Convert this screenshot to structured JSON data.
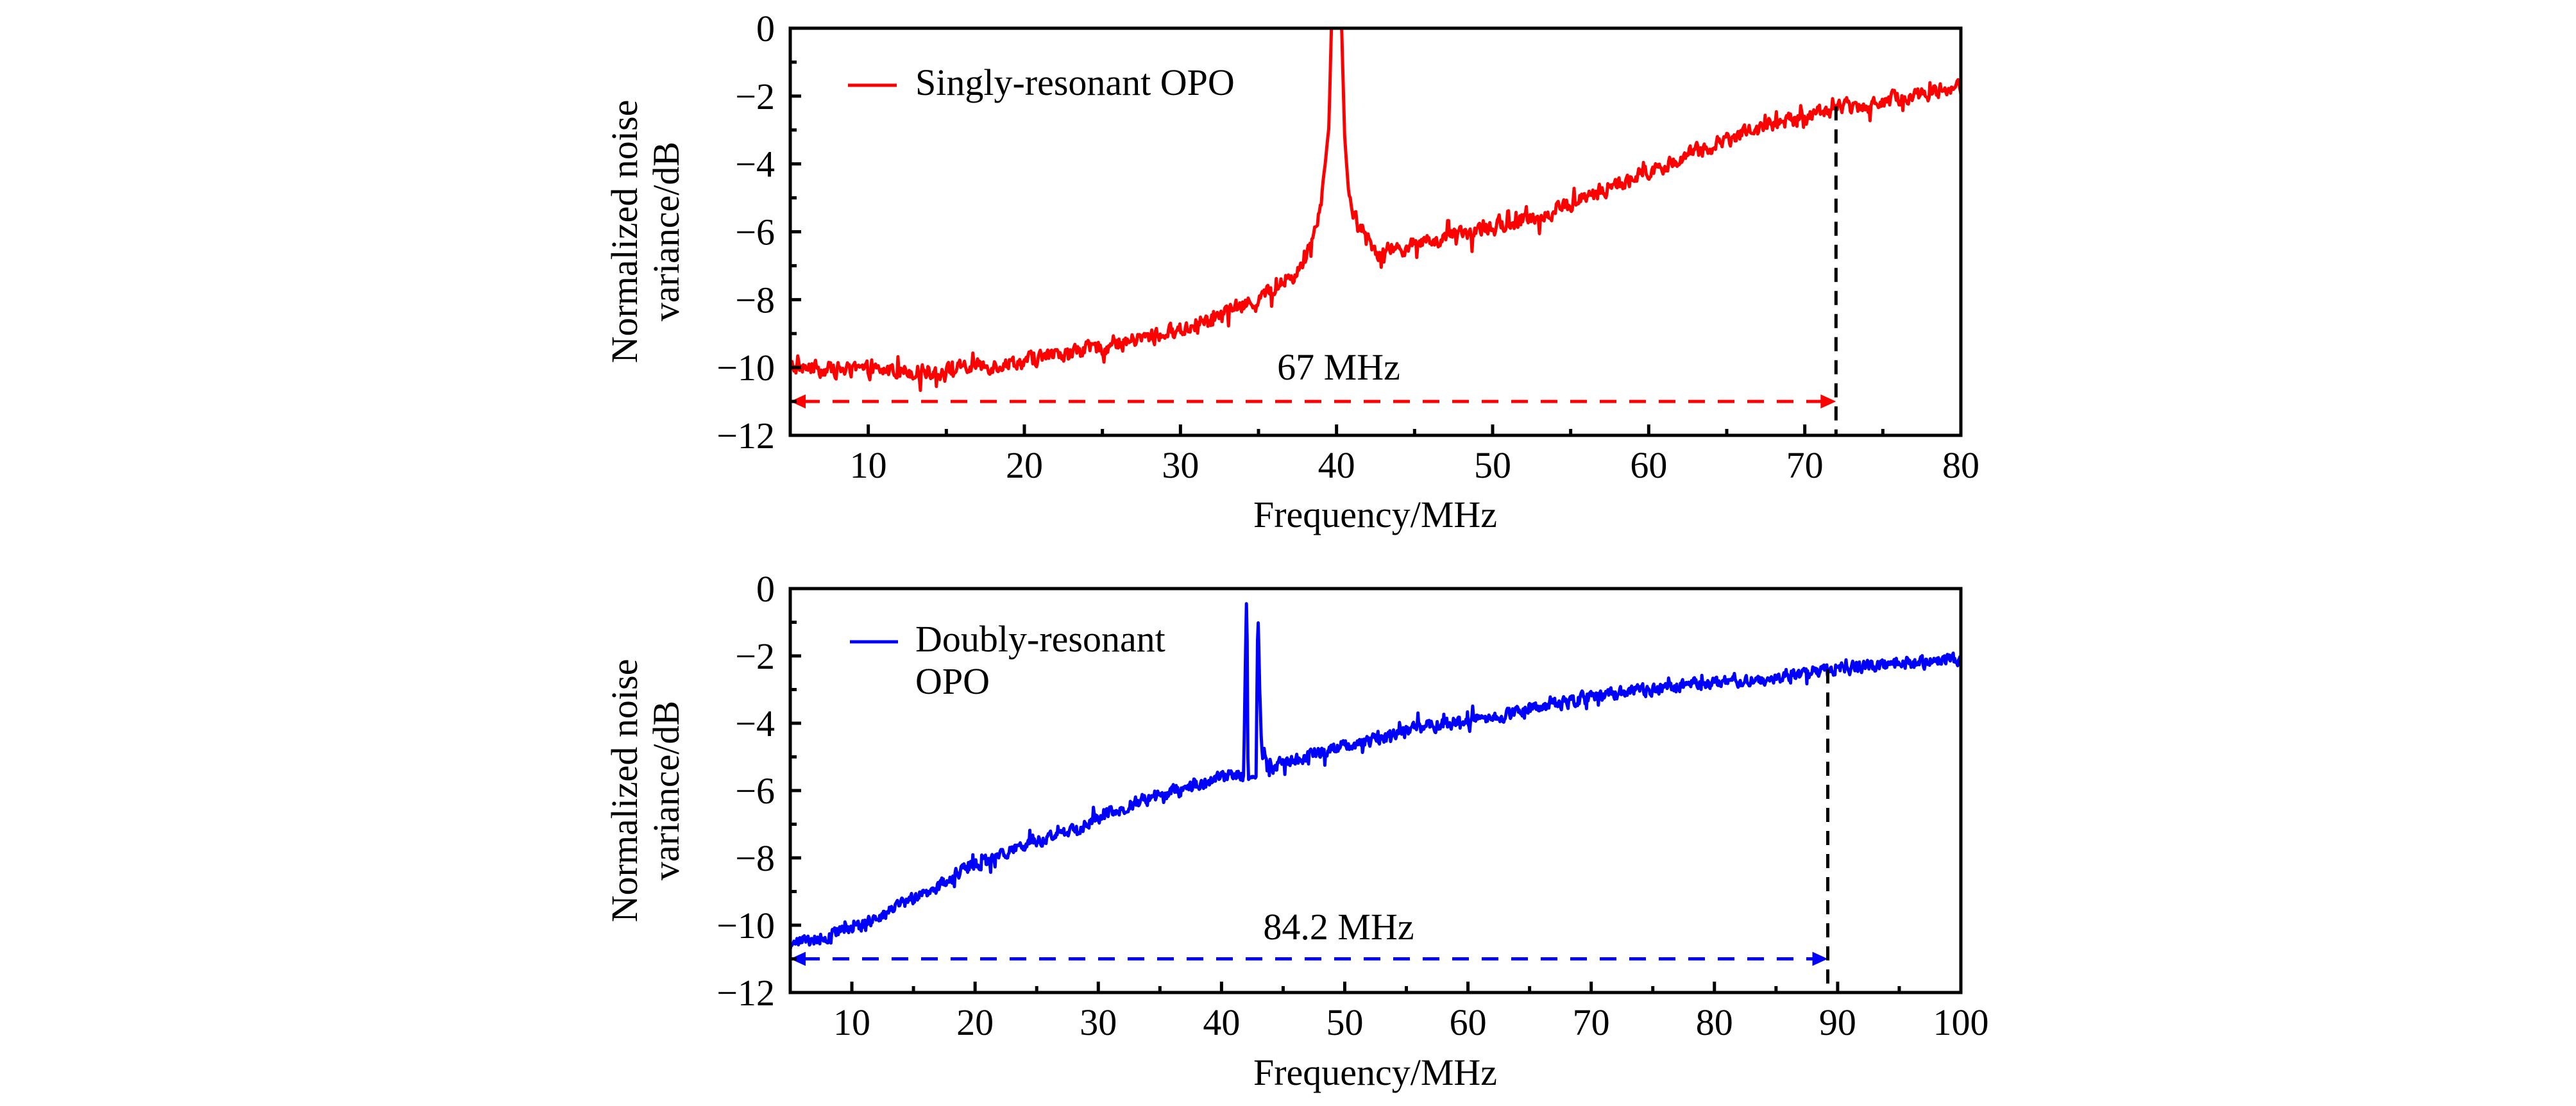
{
  "chart_data": [
    {
      "type": "line",
      "panel": "top",
      "title": "",
      "xlabel": "Frequency/MHz",
      "ylabel_lines": [
        "Normalized noise",
        "variance/dB"
      ],
      "xlim": [
        5,
        80
      ],
      "ylim": [
        -12,
        0
      ],
      "x_ticks": [
        10,
        20,
        30,
        40,
        50,
        60,
        70,
        80
      ],
      "x_minor_ticks": [
        15,
        25,
        35,
        45,
        55,
        65,
        75
      ],
      "y_ticks": [
        0,
        -2,
        -4,
        -6,
        -8,
        -10,
        -12
      ],
      "y_minor_ticks": [
        -1,
        -3,
        -5,
        -7,
        -9,
        -11
      ],
      "y_tick_labels": [
        "0",
        "−2",
        "−4",
        "−6",
        "−8",
        "−10",
        "−12"
      ],
      "x_tick_labels": [
        "10",
        "20",
        "30",
        "40",
        "50",
        "60",
        "70",
        "80"
      ],
      "grid": false,
      "legend": {
        "placement": "top-left",
        "entries": [
          {
            "label": "Singly-resonant OPO",
            "color": "#ff0000"
          }
        ]
      },
      "series": [
        {
          "name": "Singly-resonant OPO",
          "color": "#ff0000",
          "noise_amplitude_db": 0.35,
          "x": [
            5,
            10,
            15,
            20,
            25,
            30,
            35,
            37.5,
            38,
            38.5,
            39,
            39.5,
            39.7,
            40.3,
            40.5,
            40.8,
            41.3,
            42.6,
            44.9,
            49.1,
            53.3,
            57.5,
            61.7,
            65.9,
            70.1,
            72.1,
            73.5,
            80
          ],
          "y": [
            -10.0,
            -10.1,
            -10.1,
            -9.8,
            -9.4,
            -8.9,
            -8.0,
            -7.2,
            -6.8,
            -6.1,
            -5.1,
            -3.0,
            0.5,
            0.5,
            -3.0,
            -5.0,
            -5.8,
            -6.6,
            -6.4,
            -6.0,
            -5.5,
            -4.7,
            -3.9,
            -3.1,
            -2.6,
            -2.3,
            -2.3,
            -1.7
          ]
        }
      ],
      "annotations": [
        {
          "type": "double-arrow",
          "color": "#ff0000",
          "style": "dashed",
          "x_from": 5,
          "x_to": 72,
          "y": -11,
          "label": "67 MHz"
        },
        {
          "type": "vline",
          "color": "#000000",
          "style": "dashed",
          "x": 72,
          "y_from": -12,
          "y_to": -2.3
        }
      ]
    },
    {
      "type": "line",
      "panel": "bottom",
      "title": "",
      "xlabel": "Frequency/MHz",
      "ylabel_lines": [
        "Normalized noise",
        "variance/dB"
      ],
      "xlim": [
        5,
        100
      ],
      "ylim": [
        -12,
        0
      ],
      "x_ticks": [
        10,
        20,
        30,
        40,
        50,
        60,
        70,
        80,
        90,
        100
      ],
      "x_minor_ticks": [
        15,
        25,
        35,
        45,
        55,
        65,
        75,
        85,
        95
      ],
      "y_ticks": [
        0,
        -2,
        -4,
        -6,
        -8,
        -10,
        -12
      ],
      "y_minor_ticks": [
        -1,
        -3,
        -5,
        -7,
        -9,
        -11
      ],
      "y_tick_labels": [
        "0",
        "−2",
        "−4",
        "−6",
        "−8",
        "−10",
        "−12"
      ],
      "x_tick_labels": [
        "10",
        "20",
        "30",
        "40",
        "50",
        "60",
        "70",
        "80",
        "90",
        "100"
      ],
      "grid": false,
      "legend": {
        "placement": "top-left",
        "entries": [
          {
            "label_lines": [
              "Doubly-resonant",
              "OPO"
            ],
            "color": "#0000ff"
          }
        ]
      },
      "series": [
        {
          "name": "Doubly-resonant OPO",
          "color": "#0000ff",
          "noise_amplitude_db": 0.28,
          "x": [
            5,
            5.1,
            7.3,
            9.7,
            12.1,
            14.5,
            16.9,
            19.2,
            21.6,
            24.0,
            26.4,
            28.8,
            31.2,
            33.6,
            36.0,
            38.4,
            40.8,
            41.8,
            41.9,
            42.05,
            42.15,
            42.8,
            42.95,
            43.1,
            43.3,
            44.0,
            47.7,
            53.0,
            58.3,
            63.6,
            68.9,
            74.3,
            79.6,
            83.8,
            89.2,
            100
          ],
          "y": [
            -10.8,
            -10.5,
            -10.4,
            -10.1,
            -9.8,
            -9.3,
            -8.9,
            -8.3,
            -8.0,
            -7.6,
            -7.4,
            -7.0,
            -6.6,
            -6.3,
            -6.0,
            -5.8,
            -5.5,
            -5.5,
            -3.0,
            0.2,
            -5.6,
            -5.6,
            -0.5,
            -3.0,
            -5.0,
            -5.3,
            -4.9,
            -4.4,
            -4.0,
            -3.7,
            -3.3,
            -3.0,
            -2.8,
            -2.7,
            -2.4,
            -2.1
          ]
        }
      ],
      "annotations": [
        {
          "type": "double-arrow",
          "color": "#0000ff",
          "style": "dashed",
          "x_from": 5,
          "x_to": 89.2,
          "y": -11,
          "label": "84.2 MHz"
        },
        {
          "type": "vline",
          "color": "#000000",
          "style": "dashed",
          "x": 89.2,
          "y_from": -12,
          "y_to": -2.4
        }
      ]
    }
  ]
}
